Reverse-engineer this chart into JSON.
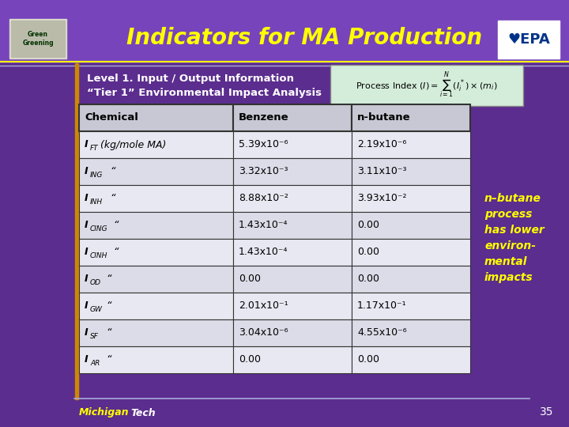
{
  "title": "Indicators for MA Production",
  "bg_color": "#5b2d8e",
  "title_color": "#ffff00",
  "subtitle_line1": "Level 1. Input / Output Information",
  "subtitle_line2": "“Tier 1” Environmental Impact Analysis",
  "subtitle_color": "#ffffff",
  "table_header": [
    "Chemical",
    "Benzene",
    "n-butane"
  ],
  "rows": [
    [
      "I_FT (kg/mole MA)",
      "5.39x10⁻⁶",
      "2.19x10⁻⁶"
    ],
    [
      "I_ING  “",
      "3.32x10⁻³",
      "3.11x10⁻³"
    ],
    [
      "I_INH  “",
      "8.88x10⁻²",
      "3.93x10⁻²"
    ],
    [
      "I_CING  “",
      "1.43x10⁻⁴",
      "0.00"
    ],
    [
      "I_CINH  “",
      "1.43x10⁻⁴",
      "0.00"
    ],
    [
      "I_OD  “",
      "0.00",
      "0.00"
    ],
    [
      "I_GW  “",
      "2.01x10⁻¹",
      "1.17x10⁻¹"
    ],
    [
      "I_SF  “",
      "3.04x10⁻⁶",
      "4.55x10⁻⁶"
    ],
    [
      "I_AR  “",
      "0.00",
      "0.00"
    ]
  ],
  "row_labels_italic": [
    [
      "I",
      "FT",
      " (kg/mole MA)"
    ],
    [
      "I",
      "ING",
      "  “"
    ],
    [
      "I",
      "INH",
      "  “"
    ],
    [
      "I",
      "CING",
      "  “"
    ],
    [
      "I",
      "CINH",
      "  “"
    ],
    [
      "I",
      "OD",
      "  “"
    ],
    [
      "I",
      "GW",
      "  “"
    ],
    [
      "I",
      "SF",
      "  “"
    ],
    [
      "I",
      "AR",
      "  “"
    ]
  ],
  "side_note_lines": [
    "n–butane",
    "process",
    "has lower",
    "environ-",
    "mental",
    "impacts"
  ],
  "side_note_color": "#ffff00",
  "page_number": "35",
  "formula_text": "Process Index $(I) = \\sum_{i=1}^{N}(I_i^*) \\times (m_i)$",
  "formula_box_bg": "#d4edda",
  "table_header_bg": "#c8c8d4",
  "table_row_bg1": "#dcdce8",
  "table_row_bg2": "#e8e8f2",
  "title_bar_bg": "#6633aa",
  "yellow_line": "#ffff00",
  "white_line": "#ccccff",
  "orange_bar": "#cc8800",
  "michigan_yellow": "#ffff00",
  "michigan_tech_color": "#ffffff"
}
